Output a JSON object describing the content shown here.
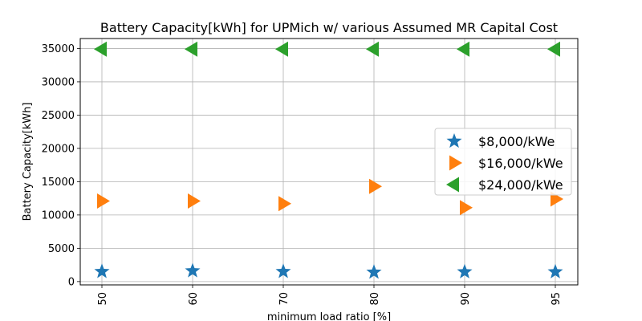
{
  "chart_data": {
    "type": "scatter",
    "title": "Battery Capacity[kWh] for UPMich w/ various Assumed MR Capital Cost",
    "xlabel": "minimum load ratio [%]",
    "ylabel": "Battery Capacity[kWh]",
    "categories": [
      "50",
      "60",
      "70",
      "80",
      "90",
      "95"
    ],
    "x_tick_rotation": "vertical",
    "yticks": [
      "0",
      "5000",
      "10000",
      "15000",
      "20000",
      "25000",
      "30000",
      "35000"
    ],
    "ylim": [
      -500,
      36500
    ],
    "grid": true,
    "legend_position": "center-right",
    "series": [
      {
        "name": "$8,000/kWe",
        "marker": "star",
        "color": "#1f77b4",
        "values": [
          1500,
          1600,
          1500,
          1400,
          1450,
          1450
        ]
      },
      {
        "name": "$16,000/kWe",
        "marker": "triangle-right",
        "color": "#ff7f0e",
        "values": [
          12100,
          12100,
          11700,
          14300,
          11100,
          12400
        ]
      },
      {
        "name": "$24,000/kWe",
        "marker": "triangle-left",
        "color": "#2ca02c",
        "values": [
          34900,
          34900,
          34900,
          34900,
          34900,
          34900
        ]
      }
    ]
  }
}
